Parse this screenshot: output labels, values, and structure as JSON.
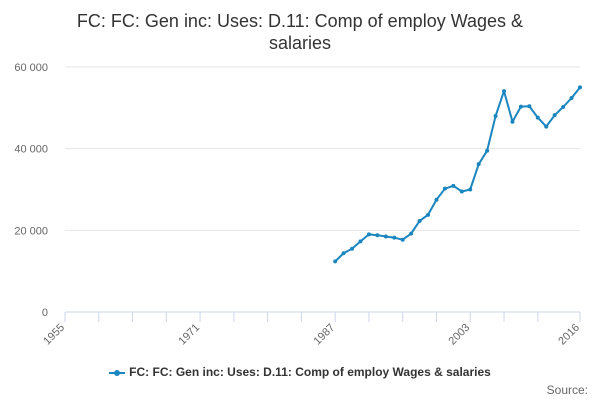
{
  "chart_data": {
    "type": "line",
    "title": "FC: FC: Gen inc: Uses: D.11: Comp of employ Wages & salaries",
    "xlabel": "",
    "ylabel": "",
    "xlim": [
      1955,
      2016
    ],
    "ylim": [
      0,
      60000
    ],
    "x_ticks": [
      1955,
      1959,
      1963,
      1967,
      1971,
      1975,
      1979,
      1983,
      1987,
      1991,
      1995,
      1999,
      2003,
      2007,
      2011,
      2016
    ],
    "x_tick_labels": [
      {
        "value": 1955,
        "label": "1955"
      },
      {
        "value": 1971,
        "label": "1971"
      },
      {
        "value": 1987,
        "label": "1987"
      },
      {
        "value": 2003,
        "label": "2003"
      },
      {
        "value": 2016,
        "label": "2016"
      }
    ],
    "y_ticks": [
      {
        "value": 0,
        "label": "0"
      },
      {
        "value": 20000,
        "label": "20 000"
      },
      {
        "value": 40000,
        "label": "40 000"
      },
      {
        "value": 60000,
        "label": "60 000"
      }
    ],
    "series": [
      {
        "name": "FC: FC: Gen inc: Uses: D.11: Comp of employ Wages & salaries",
        "color": "#1a86c0",
        "x": [
          1987,
          1988,
          1989,
          1990,
          1991,
          1992,
          1993,
          1994,
          1995,
          1996,
          1997,
          1998,
          1999,
          2000,
          2001,
          2002,
          2003,
          2004,
          2005,
          2006,
          2007,
          2008,
          2009,
          2010,
          2011,
          2012,
          2013,
          2014,
          2015,
          2016
        ],
        "values": [
          12400,
          14400,
          15500,
          17300,
          19000,
          18800,
          18500,
          18200,
          17700,
          19200,
          22300,
          23800,
          27500,
          30200,
          30900,
          29500,
          30000,
          36200,
          39500,
          48000,
          54100,
          46600,
          50300,
          50400,
          47600,
          45400,
          48200,
          50200,
          52400,
          55000
        ]
      }
    ],
    "legend": {
      "position": "bottom",
      "label": "FC: FC: Gen inc: Uses: D.11: Comp of employ Wages & salaries"
    },
    "credits": "Source:",
    "grid": "horizontal"
  }
}
